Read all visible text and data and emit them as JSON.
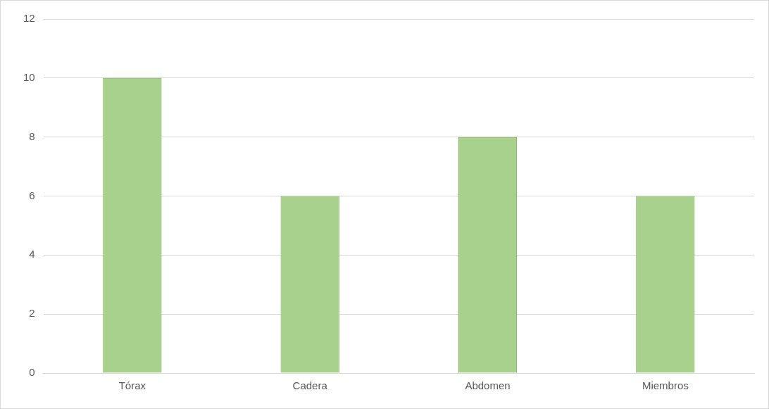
{
  "chart_data": {
    "type": "bar",
    "categories": [
      "Tórax",
      "Cadera",
      "Abdomen",
      "Miembros"
    ],
    "values": [
      10,
      6,
      8,
      6
    ],
    "color": "#a9d18e",
    "ylim": [
      0,
      12
    ],
    "yticks": [
      0,
      2,
      4,
      6,
      8,
      10,
      12
    ],
    "grid": "y",
    "legend": false
  }
}
